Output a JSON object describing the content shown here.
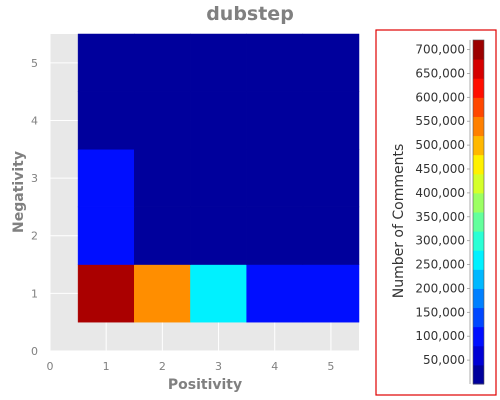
{
  "chart_data": {
    "type": "heatmap",
    "title": "dubstep",
    "xlabel": "Positivity",
    "ylabel": "Negativity",
    "xlim": [
      0,
      5.5
    ],
    "ylim": [
      0,
      5.5
    ],
    "x_ticks": [
      "0",
      "1",
      "2",
      "3",
      "4",
      "5"
    ],
    "y_ticks": [
      "0",
      "1",
      "2",
      "3",
      "4",
      "5"
    ],
    "grid": true,
    "background_color": "#e8e8e8",
    "x_categories": [
      1,
      2,
      3,
      4,
      5
    ],
    "y_categories": [
      1,
      2,
      3,
      4,
      5
    ],
    "values": [
      [
        690000,
        530000,
        260000,
        100000,
        100000
      ],
      [
        100000,
        20000,
        20000,
        20000,
        20000
      ],
      [
        100000,
        20000,
        20000,
        20000,
        20000
      ],
      [
        20000,
        20000,
        20000,
        20000,
        20000
      ],
      [
        20000,
        20000,
        20000,
        20000,
        20000
      ]
    ],
    "colorbar": {
      "title": "Number of Comments",
      "min": 0,
      "max": 720000,
      "tick_values": [
        50000,
        100000,
        150000,
        200000,
        250000,
        300000,
        350000,
        400000,
        450000,
        500000,
        550000,
        600000,
        650000,
        700000
      ],
      "tick_labels": [
        "50,000",
        "100,000",
        "150,000",
        "200,000",
        "250,000",
        "300,000",
        "350,000",
        "400,000",
        "450,000",
        "500,000",
        "550,000",
        "600,000",
        "650,000",
        "700,000"
      ],
      "border_color": "#e00000"
    }
  }
}
